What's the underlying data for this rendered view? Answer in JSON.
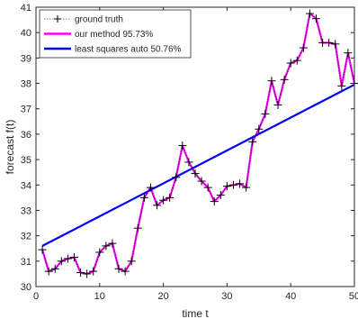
{
  "chart_data": {
    "type": "line",
    "title": "",
    "xlabel": "time t",
    "ylabel": "forecast f(t)",
    "xlim": [
      0,
      50
    ],
    "ylim": [
      30,
      41
    ],
    "xticks": [
      0,
      10,
      20,
      30,
      40,
      50
    ],
    "yticks": [
      30,
      31,
      32,
      33,
      34,
      35,
      36,
      37,
      38,
      39,
      40,
      41
    ],
    "grid": false,
    "legend_position": "top-left",
    "x": [
      1,
      2,
      3,
      4,
      5,
      6,
      7,
      8,
      9,
      10,
      11,
      12,
      13,
      14,
      15,
      16,
      17,
      18,
      19,
      20,
      21,
      22,
      23,
      24,
      25,
      26,
      27,
      28,
      29,
      30,
      31,
      32,
      33,
      34,
      35,
      36,
      37,
      38,
      39,
      40,
      41,
      42,
      43,
      44,
      45,
      46,
      47,
      48,
      49,
      50
    ],
    "series": [
      {
        "name": "ground truth",
        "color": "#000000",
        "style": "line-plus-markers",
        "values": [
          31.45,
          30.6,
          30.7,
          31.0,
          31.1,
          31.15,
          30.55,
          30.5,
          30.6,
          31.35,
          31.6,
          31.7,
          30.7,
          30.6,
          31.0,
          32.3,
          33.5,
          33.9,
          33.2,
          33.4,
          33.5,
          34.3,
          35.55,
          34.9,
          34.45,
          34.15,
          33.9,
          33.35,
          33.6,
          33.95,
          34.0,
          34.05,
          33.9,
          35.7,
          36.2,
          36.8,
          38.1,
          37.15,
          38.15,
          38.8,
          38.9,
          39.4,
          40.75,
          40.55,
          39.6,
          39.6,
          39.55,
          37.9,
          39.2,
          38.0
        ]
      },
      {
        "name": "our method 95.73%",
        "color": "#ff00ff",
        "style": "line",
        "values": [
          31.45,
          30.6,
          30.7,
          31.0,
          31.1,
          31.15,
          30.55,
          30.5,
          30.6,
          31.35,
          31.6,
          31.7,
          30.7,
          30.6,
          31.0,
          32.3,
          33.5,
          33.9,
          33.2,
          33.4,
          33.5,
          34.3,
          35.55,
          34.9,
          34.45,
          34.15,
          33.9,
          33.35,
          33.6,
          33.95,
          34.0,
          34.05,
          33.9,
          35.7,
          36.2,
          36.8,
          38.1,
          37.15,
          38.15,
          38.8,
          38.9,
          39.4,
          40.75,
          40.55,
          39.6,
          39.6,
          39.55,
          37.9,
          39.2,
          38.0
        ]
      },
      {
        "name": "least squares auto 50.76%",
        "color": "#0000ff",
        "style": "line",
        "values": [
          31.6,
          37.95
        ],
        "x": [
          1,
          50
        ]
      }
    ]
  }
}
